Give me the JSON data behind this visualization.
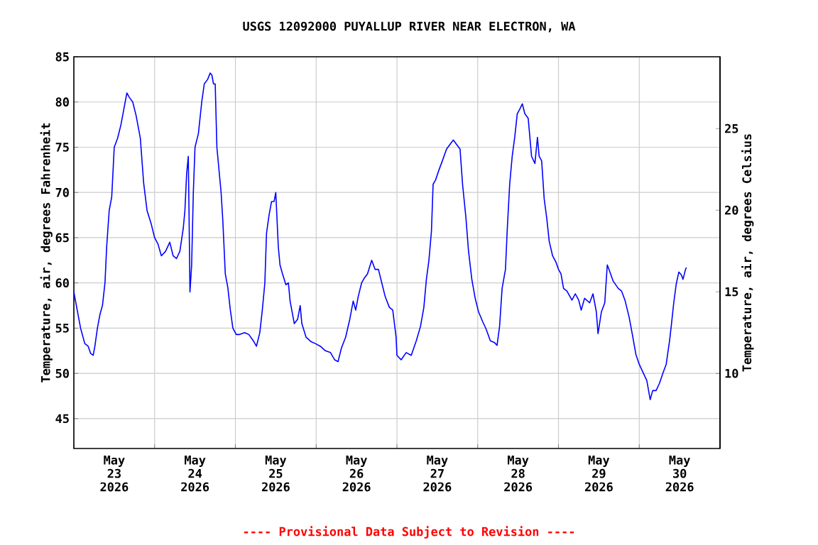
{
  "chart_data": {
    "type": "line",
    "title": "USGS 12092000 PUYALLUP RIVER NEAR ELECTRON, WA",
    "ylabel": "Temperature, air, degrees Fahrenheit",
    "y2label": "Temperature, air, degrees Celsius",
    "annotations": [
      "---- Provisional Data Subject to Revision ----"
    ],
    "xlim": [
      "2026-05-23T00:00",
      "2026-05-31T00:00"
    ],
    "xticks": [
      {
        "value": "2026-05-23T00:00",
        "label": null
      },
      {
        "value": "2026-05-24T00:00",
        "label": null
      },
      {
        "value": "2026-05-25T00:00",
        "label": null
      },
      {
        "value": "2026-05-26T00:00",
        "label": null
      },
      {
        "value": "2026-05-27T00:00",
        "label": null
      },
      {
        "value": "2026-05-28T00:00",
        "label": null
      },
      {
        "value": "2026-05-29T00:00",
        "label": null
      },
      {
        "value": "2026-05-30T00:00",
        "label": null
      },
      {
        "value": "2026-05-31T00:00",
        "label": null
      },
      {
        "value": "2026-05-23T12:00",
        "label": "May 23 2026"
      },
      {
        "value": "2026-05-24T12:00",
        "label": "May 24 2026"
      },
      {
        "value": "2026-05-25T12:00",
        "label": "May 25 2026"
      },
      {
        "value": "2026-05-26T12:00",
        "label": "May 26 2026"
      },
      {
        "value": "2026-05-27T12:00",
        "label": "May 27 2026"
      },
      {
        "value": "2026-05-28T12:00",
        "label": "May 28 2026"
      },
      {
        "value": "2026-05-29T12:00",
        "label": "May 29 2026"
      },
      {
        "value": "2026-05-30T12:00",
        "label": "May 30 2026"
      }
    ],
    "ylim": [
      41.7,
      85
    ],
    "yticks": [
      45,
      50,
      55,
      60,
      65,
      70,
      75,
      80,
      85
    ],
    "y2lim": [
      5.4,
      29.4
    ],
    "y2ticks": [
      10,
      15,
      20,
      25
    ],
    "grid": true,
    "legend": false,
    "marker": "none",
    "line_style": "solid",
    "series": [
      {
        "color": "#0000ff",
        "x": [
          "2026-05-23T00:00",
          "2026-05-23T01:15",
          "2026-05-23T02:00",
          "2026-05-23T03:15",
          "2026-05-23T04:15",
          "2026-05-23T05:00",
          "2026-05-23T05:45",
          "2026-05-23T06:15",
          "2026-05-23T07:00",
          "2026-05-23T07:45",
          "2026-05-23T08:30",
          "2026-05-23T09:15",
          "2026-05-23T09:45",
          "2026-05-23T10:30",
          "2026-05-23T11:15",
          "2026-05-23T12:00",
          "2026-05-23T13:00",
          "2026-05-23T14:00",
          "2026-05-23T15:00",
          "2026-05-23T15:45",
          "2026-05-23T16:30",
          "2026-05-23T17:30",
          "2026-05-23T18:30",
          "2026-05-23T19:45",
          "2026-05-23T20:45",
          "2026-05-23T21:45",
          "2026-05-23T23:00",
          "2026-05-24T00:00",
          "2026-05-24T01:00",
          "2026-05-24T02:00",
          "2026-05-24T03:15",
          "2026-05-24T04:30",
          "2026-05-24T05:30",
          "2026-05-24T06:30",
          "2026-05-24T07:30",
          "2026-05-24T08:30",
          "2026-05-24T09:00",
          "2026-05-24T09:30",
          "2026-05-24T10:00",
          "2026-05-24T10:15",
          "2026-05-24T10:30",
          "2026-05-24T11:00",
          "2026-05-24T11:15",
          "2026-05-24T11:30",
          "2026-05-24T12:00",
          "2026-05-24T13:00",
          "2026-05-24T14:00",
          "2026-05-24T14:45",
          "2026-05-24T15:45",
          "2026-05-24T16:30",
          "2026-05-24T17:00",
          "2026-05-24T17:30",
          "2026-05-24T18:00",
          "2026-05-24T18:30",
          "2026-05-24T19:00",
          "2026-05-24T19:45",
          "2026-05-24T20:15",
          "2026-05-24T21:00",
          "2026-05-24T21:45",
          "2026-05-24T22:30",
          "2026-05-24T23:15",
          "2026-05-25T00:15",
          "2026-05-25T01:15",
          "2026-05-25T02:45",
          "2026-05-25T04:00",
          "2026-05-25T05:30",
          "2026-05-25T06:15",
          "2026-05-25T07:15",
          "2026-05-25T08:00",
          "2026-05-25T08:45",
          "2026-05-25T09:15",
          "2026-05-25T10:00",
          "2026-05-25T10:45",
          "2026-05-25T11:30",
          "2026-05-25T12:00",
          "2026-05-25T12:45",
          "2026-05-25T13:15",
          "2026-05-25T14:00",
          "2026-05-25T15:00",
          "2026-05-25T15:45",
          "2026-05-25T16:15",
          "2026-05-25T17:30",
          "2026-05-25T18:30",
          "2026-05-25T19:15",
          "2026-05-25T19:45",
          "2026-05-25T21:00",
          "2026-05-25T22:30",
          "2026-05-25T23:45",
          "2026-05-26T01:15",
          "2026-05-26T02:45",
          "2026-05-26T04:15",
          "2026-05-26T05:30",
          "2026-05-26T06:30",
          "2026-05-26T07:30",
          "2026-05-26T08:45",
          "2026-05-26T10:00",
          "2026-05-26T11:00",
          "2026-05-26T11:45",
          "2026-05-26T12:30",
          "2026-05-26T13:30",
          "2026-05-26T14:15",
          "2026-05-26T15:15",
          "2026-05-26T16:30",
          "2026-05-26T17:30",
          "2026-05-26T18:30",
          "2026-05-26T19:30",
          "2026-05-26T20:30",
          "2026-05-26T21:45",
          "2026-05-26T22:45",
          "2026-05-26T23:45",
          "2026-05-27T00:00",
          "2026-05-27T01:15",
          "2026-05-27T02:45",
          "2026-05-27T04:15",
          "2026-05-27T05:45",
          "2026-05-27T07:00",
          "2026-05-27T08:00",
          "2026-05-27T08:45",
          "2026-05-27T09:30",
          "2026-05-27T10:15",
          "2026-05-27T10:45",
          "2026-05-27T11:30",
          "2026-05-27T12:30",
          "2026-05-27T13:30",
          "2026-05-27T14:45",
          "2026-05-27T16:45",
          "2026-05-27T17:45",
          "2026-05-27T18:45",
          "2026-05-27T19:30",
          "2026-05-27T20:30",
          "2026-05-27T21:15",
          "2026-05-27T22:15",
          "2026-05-27T23:15",
          "2026-05-28T00:15",
          "2026-05-28T01:30",
          "2026-05-28T02:30",
          "2026-05-28T03:45",
          "2026-05-28T05:00",
          "2026-05-28T05:45",
          "2026-05-28T06:30",
          "2026-05-28T07:15",
          "2026-05-28T08:15",
          "2026-05-28T08:45",
          "2026-05-28T09:30",
          "2026-05-28T10:15",
          "2026-05-28T11:00",
          "2026-05-28T11:45",
          "2026-05-28T12:30",
          "2026-05-28T13:15",
          "2026-05-28T14:00",
          "2026-05-28T15:00",
          "2026-05-28T16:00",
          "2026-05-28T17:00",
          "2026-05-28T17:45",
          "2026-05-28T18:15",
          "2026-05-28T19:00",
          "2026-05-28T19:45",
          "2026-05-28T20:30",
          "2026-05-28T21:15",
          "2026-05-28T22:15",
          "2026-05-28T23:15",
          "2026-05-29T00:00",
          "2026-05-29T00:45",
          "2026-05-29T01:30",
          "2026-05-29T02:30",
          "2026-05-29T04:00",
          "2026-05-29T05:00",
          "2026-05-29T06:00",
          "2026-05-29T06:45",
          "2026-05-29T07:45",
          "2026-05-29T09:15",
          "2026-05-29T10:15",
          "2026-05-29T11:15",
          "2026-05-29T11:45",
          "2026-05-29T12:45",
          "2026-05-29T13:45",
          "2026-05-29T14:30",
          "2026-05-29T15:00",
          "2026-05-29T16:15",
          "2026-05-29T17:45",
          "2026-05-29T18:45",
          "2026-05-29T19:45",
          "2026-05-29T21:00",
          "2026-05-29T22:00",
          "2026-05-29T23:00",
          "2026-05-30T00:00",
          "2026-05-30T01:15",
          "2026-05-30T02:15",
          "2026-05-30T03:15",
          "2026-05-30T04:00",
          "2026-05-30T05:00",
          "2026-05-30T06:00",
          "2026-05-30T07:00",
          "2026-05-30T08:00",
          "2026-05-30T09:00",
          "2026-05-30T09:30",
          "2026-05-30T10:15",
          "2026-05-30T11:00",
          "2026-05-30T11:45",
          "2026-05-30T12:30",
          "2026-05-30T13:00",
          "2026-05-30T13:45",
          "2026-05-30T14:00"
        ],
        "values": [
          59,
          56.5,
          55,
          53.3,
          53,
          52.2,
          52,
          53,
          55,
          56.5,
          57.5,
          60,
          64,
          68,
          69.5,
          75,
          76,
          77.5,
          79.5,
          81,
          80.5,
          80,
          78.5,
          76,
          71,
          68,
          66.5,
          65,
          64.3,
          63,
          63.5,
          64.5,
          63,
          62.7,
          63.5,
          66,
          68,
          72,
          74,
          67,
          59,
          62,
          66,
          70,
          75,
          76.5,
          80,
          82,
          82.5,
          83.2,
          83,
          82,
          82,
          75,
          73,
          70,
          67,
          61,
          59.5,
          57,
          55,
          54.3,
          54.3,
          54.5,
          54.3,
          53.5,
          53,
          54.5,
          57,
          60,
          65.5,
          67.5,
          69,
          69,
          70,
          64,
          62,
          61,
          59.8,
          60,
          58,
          55.5,
          56,
          57.5,
          55.5,
          54,
          53.5,
          53.3,
          53,
          52.5,
          52.3,
          51.5,
          51.3,
          52.8,
          54,
          56,
          58,
          57,
          58.5,
          60,
          60.5,
          61,
          62.5,
          61.5,
          61.5,
          60,
          58.5,
          57.3,
          57,
          54,
          52,
          51.5,
          52.3,
          52,
          53.6,
          55.2,
          57.3,
          60.4,
          62.5,
          65.7,
          70.9,
          71.4,
          72.5,
          73.5,
          74.8,
          75.8,
          75.3,
          74.8,
          70.9,
          67.2,
          63.6,
          60.4,
          58.3,
          56.8,
          55.7,
          54.9,
          53.6,
          53.4,
          53.1,
          55.2,
          59.4,
          61.5,
          65.7,
          70.9,
          74,
          76.1,
          78.7,
          79.2,
          79.8,
          78.7,
          78.2,
          74,
          73.2,
          76.1,
          74,
          73.5,
          69.3,
          67.2,
          64.6,
          63,
          62.3,
          61.5,
          61,
          59.4,
          59.1,
          58.1,
          58.8,
          58.1,
          57,
          58.3,
          57.8,
          58.8,
          56.8,
          54.4,
          56.8,
          57.8,
          62,
          61.5,
          60.2,
          59.4,
          59.1,
          58.1,
          56.2,
          54.2,
          52.1,
          51,
          50,
          49.2,
          47.1,
          48.1,
          48.1,
          48.9,
          50,
          51,
          53.6,
          55.2,
          57.8,
          59.9,
          61.2,
          60.9,
          60.4,
          61.5,
          61.7
        ]
      }
    ]
  }
}
